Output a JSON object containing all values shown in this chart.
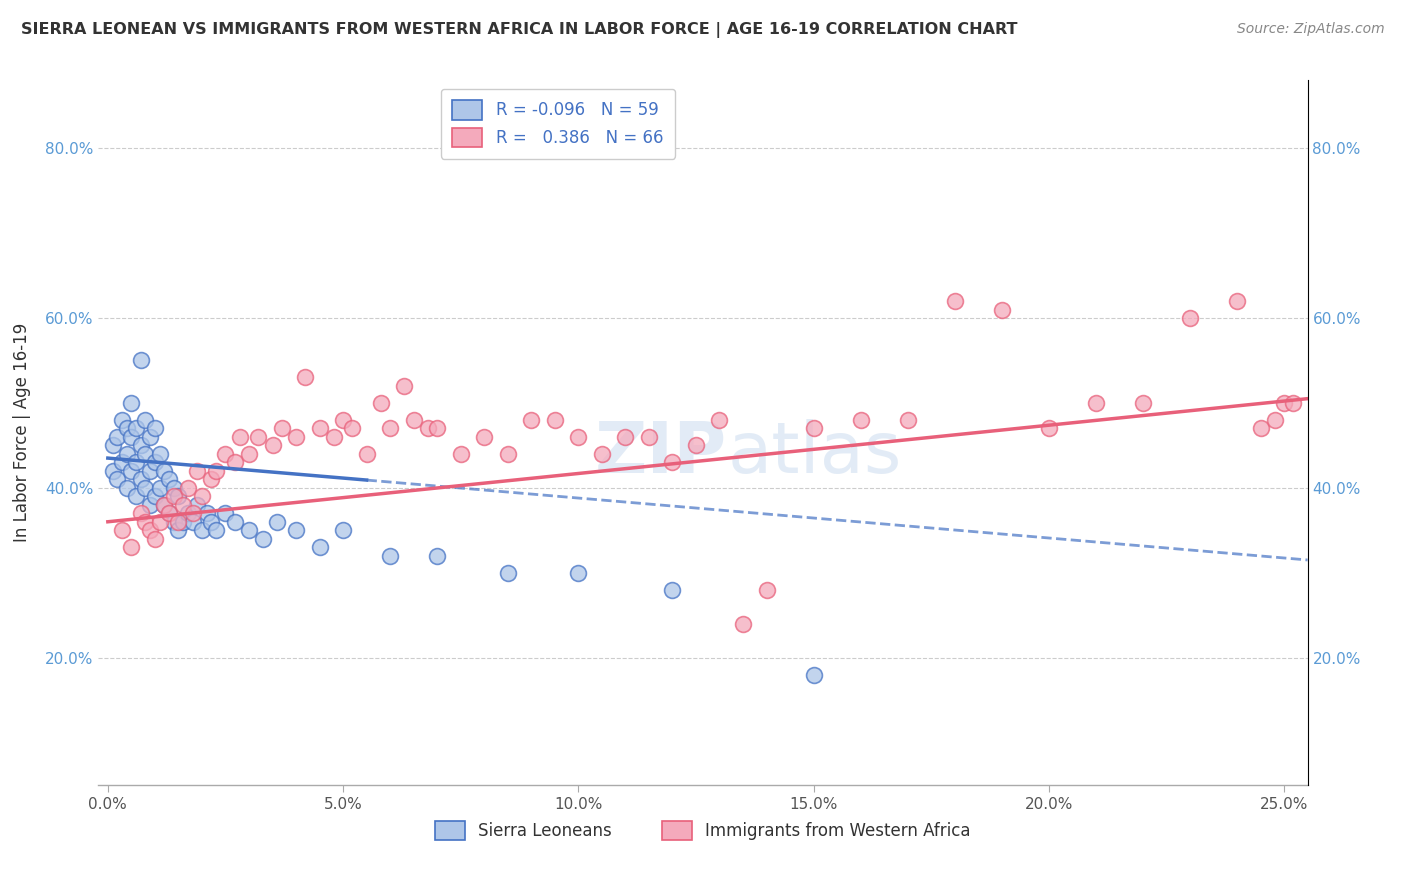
{
  "title": "SIERRA LEONEAN VS IMMIGRANTS FROM WESTERN AFRICA IN LABOR FORCE | AGE 16-19 CORRELATION CHART",
  "source": "Source: ZipAtlas.com",
  "ylabel": "In Labor Force | Age 16-19",
  "xlim": [
    -0.002,
    0.255
  ],
  "ylim": [
    0.05,
    0.88
  ],
  "yticks": [
    0.2,
    0.4,
    0.6,
    0.8
  ],
  "ytick_labels": [
    "20.0%",
    "40.0%",
    "60.0%",
    "80.0%"
  ],
  "xticks": [
    0.0,
    0.05,
    0.1,
    0.15,
    0.2,
    0.25
  ],
  "xtick_labels": [
    "0.0%",
    "5.0%",
    "10.0%",
    "15.0%",
    "20.0%",
    "25.0%"
  ],
  "series1_color": "#aec6e8",
  "series2_color": "#f4aabc",
  "trend1_color": "#4472c4",
  "trend2_color": "#e8607a",
  "label1": "Sierra Leoneans",
  "label2": "Immigrants from Western Africa",
  "blue_scatter_x": [
    0.001,
    0.001,
    0.002,
    0.002,
    0.003,
    0.003,
    0.004,
    0.004,
    0.004,
    0.005,
    0.005,
    0.005,
    0.006,
    0.006,
    0.006,
    0.007,
    0.007,
    0.007,
    0.008,
    0.008,
    0.008,
    0.009,
    0.009,
    0.009,
    0.01,
    0.01,
    0.01,
    0.011,
    0.011,
    0.012,
    0.012,
    0.013,
    0.013,
    0.014,
    0.014,
    0.015,
    0.015,
    0.016,
    0.017,
    0.018,
    0.019,
    0.02,
    0.021,
    0.022,
    0.023,
    0.025,
    0.027,
    0.03,
    0.033,
    0.036,
    0.04,
    0.045,
    0.05,
    0.06,
    0.07,
    0.085,
    0.1,
    0.12,
    0.15
  ],
  "blue_scatter_y": [
    0.42,
    0.45,
    0.41,
    0.46,
    0.43,
    0.48,
    0.4,
    0.44,
    0.47,
    0.42,
    0.46,
    0.5,
    0.39,
    0.43,
    0.47,
    0.41,
    0.45,
    0.55,
    0.4,
    0.44,
    0.48,
    0.38,
    0.42,
    0.46,
    0.39,
    0.43,
    0.47,
    0.4,
    0.44,
    0.38,
    0.42,
    0.37,
    0.41,
    0.36,
    0.4,
    0.35,
    0.39,
    0.36,
    0.37,
    0.36,
    0.38,
    0.35,
    0.37,
    0.36,
    0.35,
    0.37,
    0.36,
    0.35,
    0.34,
    0.36,
    0.35,
    0.33,
    0.35,
    0.32,
    0.32,
    0.3,
    0.3,
    0.28,
    0.18
  ],
  "pink_scatter_x": [
    0.003,
    0.005,
    0.007,
    0.008,
    0.009,
    0.01,
    0.011,
    0.012,
    0.013,
    0.014,
    0.015,
    0.016,
    0.017,
    0.018,
    0.019,
    0.02,
    0.022,
    0.023,
    0.025,
    0.027,
    0.028,
    0.03,
    0.032,
    0.035,
    0.037,
    0.04,
    0.042,
    0.045,
    0.048,
    0.05,
    0.052,
    0.055,
    0.058,
    0.06,
    0.063,
    0.065,
    0.068,
    0.07,
    0.075,
    0.08,
    0.085,
    0.09,
    0.095,
    0.1,
    0.105,
    0.11,
    0.115,
    0.12,
    0.125,
    0.13,
    0.135,
    0.14,
    0.15,
    0.16,
    0.17,
    0.18,
    0.19,
    0.2,
    0.21,
    0.22,
    0.23,
    0.24,
    0.245,
    0.248,
    0.25,
    0.252
  ],
  "pink_scatter_y": [
    0.35,
    0.33,
    0.37,
    0.36,
    0.35,
    0.34,
    0.36,
    0.38,
    0.37,
    0.39,
    0.36,
    0.38,
    0.4,
    0.37,
    0.42,
    0.39,
    0.41,
    0.42,
    0.44,
    0.43,
    0.46,
    0.44,
    0.46,
    0.45,
    0.47,
    0.46,
    0.53,
    0.47,
    0.46,
    0.48,
    0.47,
    0.44,
    0.5,
    0.47,
    0.52,
    0.48,
    0.47,
    0.47,
    0.44,
    0.46,
    0.44,
    0.48,
    0.48,
    0.46,
    0.44,
    0.46,
    0.46,
    0.43,
    0.45,
    0.48,
    0.24,
    0.28,
    0.47,
    0.48,
    0.48,
    0.62,
    0.61,
    0.47,
    0.5,
    0.5,
    0.6,
    0.62,
    0.47,
    0.48,
    0.5,
    0.5
  ],
  "trend_blue_x0": 0.0,
  "trend_blue_x1": 0.255,
  "trend_blue_y0": 0.435,
  "trend_blue_y1": 0.315,
  "trend_pink_x0": 0.0,
  "trend_pink_x1": 0.255,
  "trend_pink_y0": 0.36,
  "trend_pink_y1": 0.505
}
